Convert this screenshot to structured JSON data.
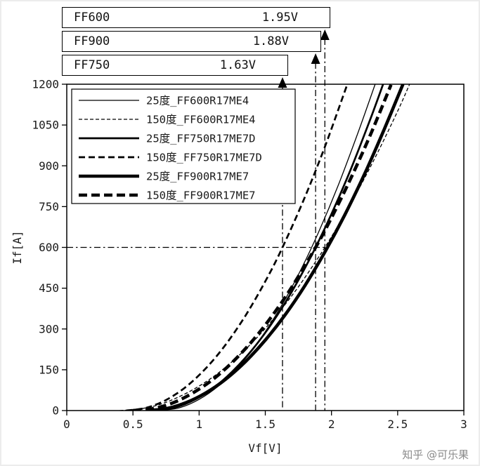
{
  "watermark": {
    "text": "知乎 @可乐果"
  },
  "callouts": [
    {
      "label": "FF600",
      "value": "1.95V"
    },
    {
      "label": "FF900",
      "value": "1.88V"
    },
    {
      "label": "FF750",
      "value": "1.63V"
    }
  ],
  "chart_data": {
    "type": "line",
    "title": "",
    "xlabel": "Vf[V]",
    "ylabel": "If[A]",
    "xlim": [
      0,
      3
    ],
    "ylim": [
      0,
      1200
    ],
    "xticks": [
      0,
      0.5,
      1,
      1.5,
      2,
      2.5,
      3
    ],
    "xtick_labels": [
      "0",
      "0.5",
      "1",
      "1.5",
      "2",
      "2.5",
      "3"
    ],
    "yticks": [
      0,
      150,
      300,
      450,
      600,
      750,
      900,
      1050,
      1200
    ],
    "grid": false,
    "legend_position": "top-left",
    "series": [
      {
        "name": "25度_FF600R17ME4",
        "device": "FF600R17ME4",
        "temperature_C": 25,
        "weight": "thin",
        "dash": "solid",
        "points": [
          [
            0.7,
            0
          ],
          [
            0.85,
            10
          ],
          [
            1.0,
            41
          ],
          [
            1.15,
            92
          ],
          [
            1.3,
            163
          ],
          [
            1.45,
            255
          ],
          [
            1.6,
            367
          ],
          [
            1.75,
            500
          ],
          [
            1.9,
            653
          ],
          [
            2.05,
            827
          ],
          [
            2.2,
            1021
          ],
          [
            2.33,
            1200
          ]
        ]
      },
      {
        "name": "150度_FF600R17ME4",
        "device": "FF600R17ME4",
        "temperature_C": 150,
        "weight": "thin",
        "dash": "dashed",
        "points": [
          [
            0.4,
            0
          ],
          [
            0.55,
            6
          ],
          [
            0.7,
            22
          ],
          [
            0.85,
            51
          ],
          [
            1.0,
            90
          ],
          [
            1.15,
            140
          ],
          [
            1.3,
            202
          ],
          [
            1.45,
            275
          ],
          [
            1.6,
            360
          ],
          [
            1.75,
            455
          ],
          [
            1.9,
            562
          ],
          [
            1.95,
            600
          ],
          [
            2.05,
            680
          ],
          [
            2.2,
            809
          ],
          [
            2.35,
            950
          ],
          [
            2.5,
            1101
          ],
          [
            2.59,
            1200
          ]
        ]
      },
      {
        "name": "25度_FF750R17ME7D",
        "device": "FF750R17ME7D",
        "temperature_C": 25,
        "weight": "medium",
        "dash": "solid",
        "points": [
          [
            0.65,
            0
          ],
          [
            0.8,
            9
          ],
          [
            0.95,
            36
          ],
          [
            1.1,
            80
          ],
          [
            1.25,
            143
          ],
          [
            1.4,
            223
          ],
          [
            1.55,
            321
          ],
          [
            1.7,
            437
          ],
          [
            1.85,
            571
          ],
          [
            2.0,
            723
          ],
          [
            2.15,
            892
          ],
          [
            2.3,
            1080
          ],
          [
            2.39,
            1200
          ]
        ]
      },
      {
        "name": "150度_FF750R17ME7D",
        "device": "FF750R17ME7D",
        "temperature_C": 150,
        "weight": "medium",
        "dash": "dashed",
        "points": [
          [
            0.45,
            0
          ],
          [
            0.6,
            10
          ],
          [
            0.75,
            39
          ],
          [
            0.9,
            87
          ],
          [
            1.05,
            155
          ],
          [
            1.2,
            242
          ],
          [
            1.35,
            349
          ],
          [
            1.5,
            475
          ],
          [
            1.63,
            600
          ],
          [
            1.8,
            786
          ],
          [
            1.95,
            970
          ],
          [
            2.1,
            1173
          ],
          [
            2.12,
            1200
          ]
        ]
      },
      {
        "name": "25度_FF900R17ME7",
        "device": "FF900R17ME7",
        "temperature_C": 25,
        "weight": "thick",
        "dash": "solid",
        "points": [
          [
            0.6,
            0
          ],
          [
            0.75,
            7
          ],
          [
            0.9,
            29
          ],
          [
            1.05,
            65
          ],
          [
            1.2,
            115
          ],
          [
            1.35,
            180
          ],
          [
            1.5,
            259
          ],
          [
            1.65,
            352
          ],
          [
            1.8,
            460
          ],
          [
            1.95,
            583
          ],
          [
            2.1,
            719
          ],
          [
            2.25,
            870
          ],
          [
            2.4,
            1036
          ],
          [
            2.54,
            1200
          ]
        ]
      },
      {
        "name": "150度_FF900R17ME7",
        "device": "FF900R17ME7",
        "temperature_C": 150,
        "weight": "thick",
        "dash": "dashed",
        "points": [
          [
            0.5,
            0
          ],
          [
            0.65,
            7
          ],
          [
            0.8,
            28
          ],
          [
            0.95,
            64
          ],
          [
            1.1,
            113
          ],
          [
            1.25,
            177
          ],
          [
            1.4,
            255
          ],
          [
            1.55,
            347
          ],
          [
            1.7,
            454
          ],
          [
            1.88,
            600
          ],
          [
            2.0,
            709
          ],
          [
            2.15,
            858
          ],
          [
            2.3,
            1021
          ],
          [
            2.45,
            1198
          ]
        ]
      }
    ],
    "annotations": {
      "hline": {
        "y": 600,
        "style": "dash-dot"
      },
      "vf_at_600A": [
        {
          "device": "FF600",
          "vf": 1.95
        },
        {
          "device": "FF900",
          "vf": 1.88
        },
        {
          "device": "FF750",
          "vf": 1.63
        }
      ]
    }
  }
}
